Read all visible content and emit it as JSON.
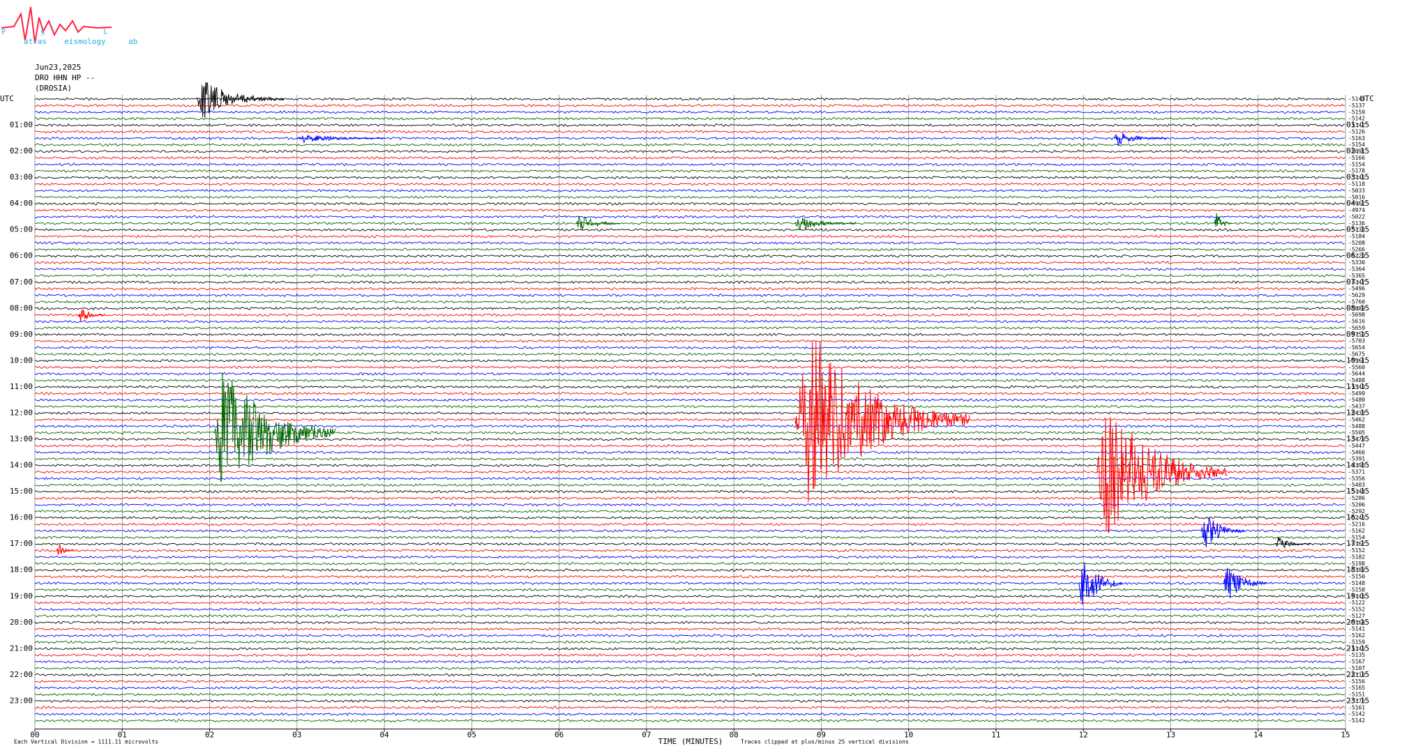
{
  "logo": {
    "letters": [
      "P",
      "S",
      "L"
    ],
    "words": [
      "atras",
      "eismology",
      "ab"
    ]
  },
  "chart_data": {
    "type": "helicorder",
    "header": [
      "Jun23,2025",
      "DRO HHN HP --",
      "(DROSIA)"
    ],
    "left_labels": [
      "UTC",
      "01:00",
      "02:00",
      "03:00",
      "04:00",
      "05:00",
      "06:00",
      "07:00",
      "08:00",
      "09:00",
      "10:00",
      "11:00",
      "12:00",
      "13:00",
      "14:00",
      "15:00",
      "16:00",
      "17:00",
      "18:00",
      "19:00",
      "20:00",
      "21:00",
      "22:00",
      "23:00"
    ],
    "right_labels": [
      "UTC",
      "01:15",
      "02:15",
      "03:15",
      "04:15",
      "05:15",
      "06:15",
      "07:15",
      "08:15",
      "09:15",
      "10:15",
      "11:15",
      "12:15",
      "13:15",
      "14:15",
      "15:15",
      "16:15",
      "17:15",
      "18:15",
      "19:15",
      "20:15",
      "21:15",
      "22:15",
      "23:15"
    ],
    "trace_offsets": [
      -5145,
      -5137,
      -5159,
      -5142,
      -5142,
      -5126,
      -5163,
      -5154,
      -5091,
      -5166,
      -5154,
      -5178,
      -5146,
      -5118,
      -5033,
      -5016,
      -4962,
      -4974,
      -5022,
      -5136,
      -5138,
      -5184,
      -5208,
      -5266,
      -5229,
      -5330,
      -5364,
      -5365,
      -5347,
      -5496,
      -5629,
      -5760,
      -5689,
      -5698,
      -5616,
      -5659,
      -5759,
      -5703,
      -5654,
      -5675,
      -5561,
      -5560,
      -5644,
      -5488,
      -5543,
      -5499,
      -5480,
      -5437,
      -5438,
      -5462,
      -5488,
      -5505,
      -5479,
      -5447,
      -5466,
      -5391,
      -5398,
      -5371,
      -5356,
      -5403,
      -5344,
      -5286,
      -5206,
      -5292,
      -5246,
      -5216,
      -5162,
      -5154,
      -5162,
      -5152,
      -5182,
      -5198,
      -5180,
      -5150,
      -5148,
      -5158,
      -5143,
      -5122,
      -5152,
      -5127,
      -5164,
      -5141,
      -5162,
      -5159,
      -5145,
      -5135,
      -5167,
      -5107,
      -5110,
      -5156,
      -5165,
      -5151,
      -5176,
      -5161,
      -5142,
      -5142
    ],
    "trace_colors": [
      "#000000",
      "#ff0000",
      "#0000ff",
      "#006400"
    ],
    "xlim": [
      0,
      15
    ],
    "xticks": [
      {
        "value": 0,
        "label": "00"
      },
      {
        "value": 1,
        "label": "01"
      },
      {
        "value": 2,
        "label": "02"
      },
      {
        "value": 3,
        "label": "03"
      },
      {
        "value": 4,
        "label": "04"
      },
      {
        "value": 5,
        "label": "05"
      },
      {
        "value": 6,
        "label": "06"
      },
      {
        "value": 7,
        "label": "07"
      },
      {
        "value": 8,
        "label": "08"
      },
      {
        "value": 9,
        "label": "09"
      },
      {
        "value": 10,
        "label": "10"
      },
      {
        "value": 11,
        "label": "11"
      },
      {
        "value": 12,
        "label": "12"
      },
      {
        "value": 13,
        "label": "13"
      },
      {
        "value": 14,
        "label": "14"
      },
      {
        "value": 15,
        "label": "15"
      }
    ],
    "xlabel": "TIME (MINUTES)",
    "footnote_left": "Each Vertical Division = 1111.11 microvolts",
    "footnote_right": "Traces clipped at plus/minus 25 vertical divisions",
    "grid": true,
    "events": [
      {
        "trace": 0,
        "minute": 1.85,
        "duration": 1.0,
        "amplitude": 4
      },
      {
        "trace": 6,
        "minute": 3.0,
        "duration": 1.0,
        "amplitude": 1
      },
      {
        "trace": 6,
        "minute": 12.35,
        "duration": 0.6,
        "amplitude": 1.5
      },
      {
        "trace": 19,
        "minute": 6.2,
        "duration": 0.5,
        "amplitude": 2
      },
      {
        "trace": 19,
        "minute": 8.7,
        "duration": 0.7,
        "amplitude": 1.5
      },
      {
        "trace": 19,
        "minute": 13.5,
        "duration": 0.2,
        "amplitude": 2.5
      },
      {
        "trace": 33,
        "minute": 0.5,
        "duration": 0.3,
        "amplitude": 1.5
      },
      {
        "trace": 51,
        "minute": 2.05,
        "duration": 1.4,
        "amplitude": 14
      },
      {
        "trace": 49,
        "minute": 8.7,
        "duration": 2.0,
        "amplitude": 19
      },
      {
        "trace": 57,
        "minute": 12.15,
        "duration": 1.5,
        "amplitude": 15
      },
      {
        "trace": 66,
        "minute": 13.35,
        "duration": 0.5,
        "amplitude": 4
      },
      {
        "trace": 68,
        "minute": 14.2,
        "duration": 0.4,
        "amplitude": 1.5
      },
      {
        "trace": 69,
        "minute": 0.25,
        "duration": 0.2,
        "amplitude": 1.5
      },
      {
        "trace": 74,
        "minute": 11.95,
        "duration": 0.5,
        "amplitude": 6
      },
      {
        "trace": 74,
        "minute": 13.6,
        "duration": 0.5,
        "amplitude": 4
      }
    ]
  }
}
